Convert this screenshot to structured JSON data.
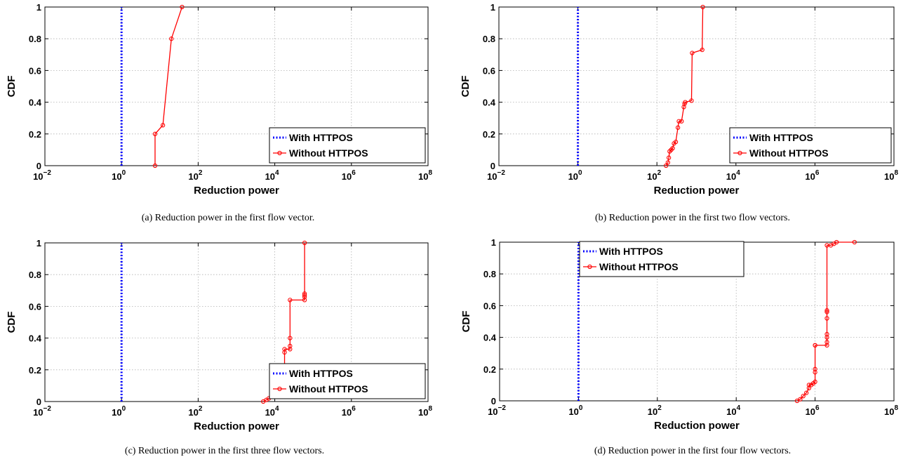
{
  "chart_data": [
    {
      "type": "line",
      "caption": "(a)  Reduction power in the first flow vector.",
      "xlabel": "Reduction power",
      "ylabel": "CDF",
      "xscale": "log",
      "xlim": [
        0.01,
        100000000
      ],
      "ylim": [
        0,
        1
      ],
      "xticks": [
        {
          "base": "10",
          "exp": "−2"
        },
        {
          "base": "10",
          "exp": "0"
        },
        {
          "base": "10",
          "exp": "2"
        },
        {
          "base": "10",
          "exp": "4"
        },
        {
          "base": "10",
          "exp": "6"
        },
        {
          "base": "10",
          "exp": "8"
        }
      ],
      "yticks": [
        "0",
        "0.2",
        "0.4",
        "0.6",
        "0.8",
        "1"
      ],
      "grid": true,
      "legend_position": "bottom-right",
      "series": [
        {
          "name": "With HTTPOS",
          "style": "dotted",
          "color": "#0000ff",
          "x": [
            1,
            1
          ],
          "y": [
            0,
            1
          ]
        },
        {
          "name": "Without HTTPOS",
          "style": "line-circle",
          "color": "#ff0000",
          "x": [
            7.5,
            7.5,
            12,
            20,
            38
          ],
          "y": [
            0,
            0.2,
            0.255,
            0.8,
            1
          ]
        }
      ]
    },
    {
      "type": "line",
      "caption": "(b)  Reduction power in the first two flow vectors.",
      "xlabel": "Reduction power",
      "ylabel": "CDF",
      "xscale": "log",
      "xlim": [
        0.01,
        100000000
      ],
      "ylim": [
        0,
        1
      ],
      "xticks": [
        {
          "base": "10",
          "exp": "−2"
        },
        {
          "base": "10",
          "exp": "0"
        },
        {
          "base": "10",
          "exp": "2"
        },
        {
          "base": "10",
          "exp": "4"
        },
        {
          "base": "10",
          "exp": "6"
        },
        {
          "base": "10",
          "exp": "8"
        }
      ],
      "yticks": [
        "0",
        "0.2",
        "0.4",
        "0.6",
        "0.8",
        "1"
      ],
      "grid": true,
      "legend_position": "bottom-right",
      "series": [
        {
          "name": "With HTTPOS",
          "style": "dotted",
          "color": "#0000ff",
          "x": [
            1,
            1
          ],
          "y": [
            0,
            1
          ]
        },
        {
          "name": "Without HTTPOS",
          "style": "line-circle",
          "color": "#ff0000",
          "x": [
            170,
            190,
            200,
            210,
            230,
            250,
            270,
            300,
            340,
            360,
            420,
            480,
            500,
            520,
            750,
            780,
            1400,
            1450
          ],
          "y": [
            0,
            0.02,
            0.05,
            0.09,
            0.1,
            0.11,
            0.14,
            0.15,
            0.24,
            0.28,
            0.28,
            0.37,
            0.39,
            0.4,
            0.41,
            0.71,
            0.73,
            1
          ]
        }
      ]
    },
    {
      "type": "line",
      "caption": "(c)  Reduction power in the first three flow vectors.",
      "xlabel": "Reduction power",
      "ylabel": "CDF",
      "xscale": "log",
      "xlim": [
        0.01,
        100000000
      ],
      "ylim": [
        0,
        1
      ],
      "xticks": [
        {
          "base": "10",
          "exp": "−2"
        },
        {
          "base": "10",
          "exp": "0"
        },
        {
          "base": "10",
          "exp": "2"
        },
        {
          "base": "10",
          "exp": "4"
        },
        {
          "base": "10",
          "exp": "6"
        },
        {
          "base": "10",
          "exp": "8"
        }
      ],
      "yticks": [
        "0",
        "0.2",
        "0.4",
        "0.6",
        "0.8",
        "1"
      ],
      "grid": true,
      "legend_position": "bottom-right",
      "series": [
        {
          "name": "With HTTPOS",
          "style": "dotted",
          "color": "#0000ff",
          "x": [
            1,
            1
          ],
          "y": [
            0,
            1
          ]
        },
        {
          "name": "Without HTTPOS",
          "style": "line-circle",
          "color": "#ff0000",
          "x": [
            5000,
            6000,
            7000,
            8000,
            9000,
            10000,
            11000,
            12000,
            12000,
            13000,
            13000,
            15000,
            15000,
            18000,
            18000,
            18000,
            18000,
            25000,
            25000,
            25000,
            25000,
            60000,
            60000,
            60000,
            60000,
            60000
          ],
          "y": [
            0,
            0.01,
            0.02,
            0.03,
            0.04,
            0.05,
            0.06,
            0.08,
            0.1,
            0.11,
            0.12,
            0.13,
            0.15,
            0.18,
            0.2,
            0.31,
            0.33,
            0.33,
            0.35,
            0.4,
            0.64,
            0.64,
            0.66,
            0.67,
            0.68,
            1
          ]
        }
      ]
    },
    {
      "type": "line",
      "caption": "(d)  Reduction power in the first four flow vectors.",
      "xlabel": "Reduction power",
      "ylabel": "CDF",
      "xscale": "log",
      "xlim": [
        0.01,
        100000000
      ],
      "ylim": [
        0,
        1
      ],
      "xticks": [
        {
          "base": "10",
          "exp": "−2"
        },
        {
          "base": "10",
          "exp": "0"
        },
        {
          "base": "10",
          "exp": "2"
        },
        {
          "base": "10",
          "exp": "4"
        },
        {
          "base": "10",
          "exp": "6"
        },
        {
          "base": "10",
          "exp": "8"
        }
      ],
      "yticks": [
        "0",
        "0.2",
        "0.4",
        "0.6",
        "0.8",
        "1"
      ],
      "grid": true,
      "legend_position": "top",
      "series": [
        {
          "name": "With HTTPOS",
          "style": "dotted",
          "color": "#0000ff",
          "x": [
            1,
            1
          ],
          "y": [
            0,
            1
          ]
        },
        {
          "name": "Without HTTPOS",
          "style": "line-circle",
          "color": "#ff0000",
          "x": [
            350000,
            420000,
            500000,
            600000,
            700000,
            700000,
            800000,
            900000,
            1000000,
            1000000,
            1000000,
            1000000,
            1000000,
            2000000,
            2000000,
            2000000,
            2000000,
            2000000,
            2000000,
            2000000,
            2000000,
            2500000,
            3000000,
            3500000,
            10000000
          ],
          "y": [
            0,
            0.01,
            0.03,
            0.05,
            0.08,
            0.1,
            0.1,
            0.11,
            0.12,
            0.18,
            0.2,
            0.35,
            0.35,
            0.35,
            0.37,
            0.4,
            0.42,
            0.52,
            0.56,
            0.57,
            0.98,
            0.98,
            0.99,
            1,
            1
          ]
        }
      ]
    }
  ]
}
